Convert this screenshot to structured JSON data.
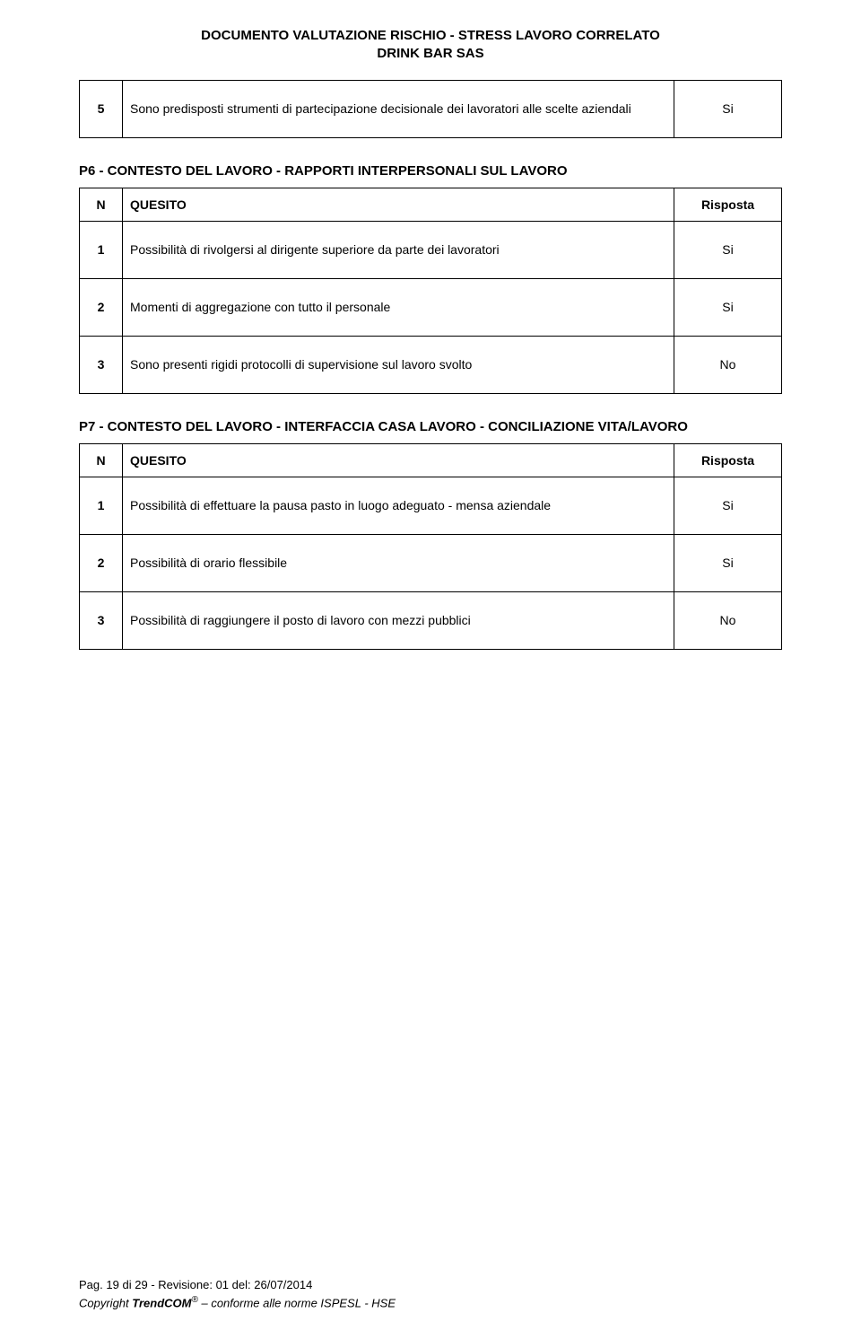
{
  "header": {
    "line1": "DOCUMENTO VALUTAZIONE RISCHIO - STRESS LAVORO CORRELATO",
    "line2": "DRINK BAR SAS"
  },
  "columns": {
    "n": "N",
    "quesito": "QUESITO",
    "risposta": "Risposta"
  },
  "section_p5_tail": {
    "rows": [
      {
        "n": "5",
        "q": "Sono predisposti strumenti di partecipazione decisionale dei lavoratori alle scelte aziendali",
        "r": "Si"
      }
    ]
  },
  "section_p6": {
    "title": "P6 - CONTESTO DEL LAVORO - RAPPORTI INTERPERSONALI SUL LAVORO",
    "rows": [
      {
        "n": "1",
        "q": "Possibilità di rivolgersi al dirigente superiore da parte dei lavoratori",
        "r": "Si"
      },
      {
        "n": "2",
        "q": "Momenti di aggregazione con tutto il personale",
        "r": "Si"
      },
      {
        "n": "3",
        "q": "Sono presenti rigidi protocolli di supervisione sul lavoro svolto",
        "r": "No"
      }
    ]
  },
  "section_p7": {
    "title": "P7 - CONTESTO DEL LAVORO - INTERFACCIA CASA LAVORO - CONCILIAZIONE VITA/LAVORO",
    "rows": [
      {
        "n": "1",
        "q": "Possibilità di effettuare la pausa pasto in luogo adeguato - mensa aziendale",
        "r": "Si"
      },
      {
        "n": "2",
        "q": "Possibilità di orario flessibile",
        "r": "Si"
      },
      {
        "n": "3",
        "q": "Possibilità di raggiungere il posto di lavoro con mezzi pubblici",
        "r": "No"
      }
    ]
  },
  "footer": {
    "page_label": "Pag.",
    "page_current": "19",
    "page_of": "di",
    "page_total": "29",
    "rev_label": "- Revisione:",
    "rev_num": "01",
    "rev_of": "del:",
    "rev_date": "26/07/2014",
    "copyright": "Copyright",
    "brand": "TrendCOM",
    "reg": "®",
    "tail": "– conforme alle norme ISPESL - HSE"
  }
}
